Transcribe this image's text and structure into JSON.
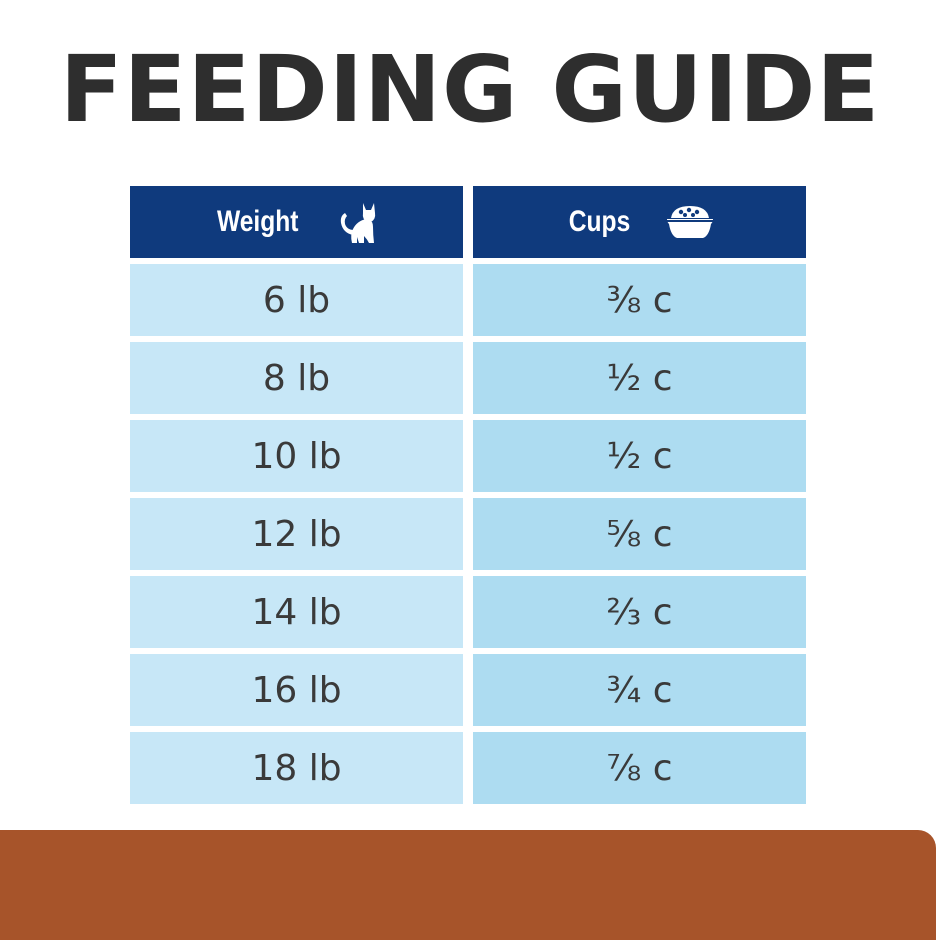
{
  "title": "FEEDING GUIDE",
  "table": {
    "headers": {
      "weight": "Weight",
      "cups": "Cups"
    },
    "header_icons": {
      "weight": "cat-icon",
      "cups": "food-bowl-icon"
    },
    "rows": [
      {
        "weight": "6 lb",
        "cups": "⅜ c"
      },
      {
        "weight": "8 lb",
        "cups": "½ c"
      },
      {
        "weight": "10 lb",
        "cups": "½ c"
      },
      {
        "weight": "12 lb",
        "cups": "⅝ c"
      },
      {
        "weight": "14 lb",
        "cups": "⅔ c"
      },
      {
        "weight": "16 lb",
        "cups": "¾ c"
      },
      {
        "weight": "18 lb",
        "cups": "⅞ c"
      }
    ]
  },
  "colors": {
    "header_bg": "#0f3a7d",
    "weight_cell_bg": "#c7e7f7",
    "cups_cell_bg": "#addcf1",
    "title_text": "#2e2e2e",
    "footer_band": "#a7542a"
  }
}
